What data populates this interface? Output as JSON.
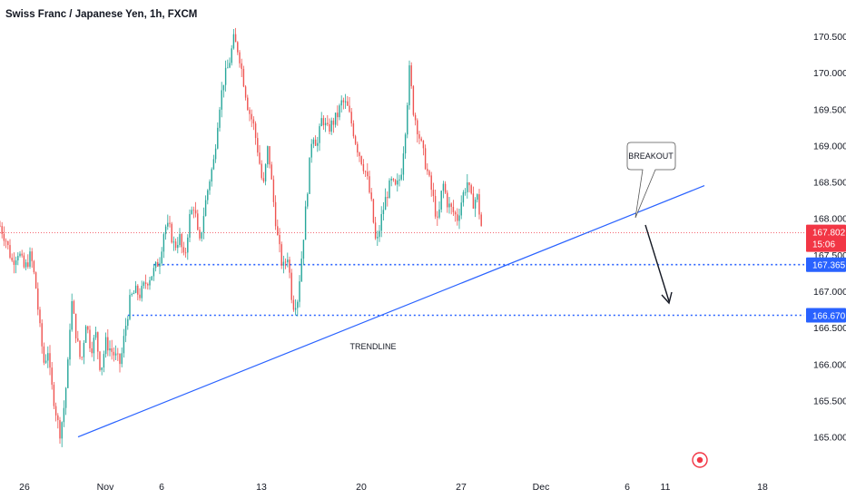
{
  "chart_title": "Swiss Franc / Japanese Yen, 1h, FXCM",
  "chart_data": {
    "type": "candlestick",
    "title": "Swiss Franc / Japanese Yen, 1h, FXCM",
    "ylim": [
      164.87,
      170.65
    ],
    "y_ticks": [
      "170.500",
      "170.000",
      "169.500",
      "169.000",
      "168.500",
      "168.000",
      "167.500",
      "167.000",
      "166.500",
      "166.000",
      "165.500",
      "165.000"
    ],
    "x_ticks": [
      "26",
      "Nov",
      "6",
      "13",
      "20",
      "27",
      "Dec",
      "6",
      "11",
      "18"
    ],
    "colors": {
      "up": "#26a69a",
      "down": "#ef5350",
      "trendline": "#2962ff",
      "level": "#2962ff",
      "price": "#f23645"
    },
    "path_points": [
      {
        "d": -2.0,
        "p": 167.9
      },
      {
        "d": -1.5,
        "p": 167.7
      },
      {
        "d": -1.0,
        "p": 167.4
      },
      {
        "d": -0.5,
        "p": 167.55
      },
      {
        "d": 0.0,
        "p": 167.3
      },
      {
        "d": 0.5,
        "p": 167.5
      },
      {
        "d": 0.9,
        "p": 167.1
      },
      {
        "d": 1.3,
        "p": 166.4
      },
      {
        "d": 1.6,
        "p": 166.0
      },
      {
        "d": 1.9,
        "p": 166.2
      },
      {
        "d": 2.1,
        "p": 165.8
      },
      {
        "d": 2.4,
        "p": 165.5
      },
      {
        "d": 2.7,
        "p": 165.2
      },
      {
        "d": 2.9,
        "p": 165.05
      },
      {
        "d": 3.2,
        "p": 165.4
      },
      {
        "d": 3.5,
        "p": 165.9
      },
      {
        "d": 3.8,
        "p": 166.9
      },
      {
        "d": 4.2,
        "p": 166.4
      },
      {
        "d": 4.6,
        "p": 166.0
      },
      {
        "d": 5.0,
        "p": 166.6
      },
      {
        "d": 5.4,
        "p": 166.2
      },
      {
        "d": 5.8,
        "p": 166.4
      },
      {
        "d": 6.2,
        "p": 165.9
      },
      {
        "d": 6.6,
        "p": 166.3
      },
      {
        "d": 7.0,
        "p": 166.2
      },
      {
        "d": 7.4,
        "p": 166.1
      },
      {
        "d": 7.8,
        "p": 166.0
      },
      {
        "d": 8.2,
        "p": 166.5
      },
      {
        "d": 8.6,
        "p": 166.9
      },
      {
        "d": 9.0,
        "p": 167.0
      },
      {
        "d": 9.4,
        "p": 166.95
      },
      {
        "d": 9.8,
        "p": 167.1
      },
      {
        "d": 10.2,
        "p": 167.2
      },
      {
        "d": 10.6,
        "p": 167.3
      },
      {
        "d": 11.0,
        "p": 167.45
      },
      {
        "d": 11.4,
        "p": 167.9
      },
      {
        "d": 11.8,
        "p": 167.85
      },
      {
        "d": 12.2,
        "p": 167.6
      },
      {
        "d": 12.6,
        "p": 167.75
      },
      {
        "d": 13.0,
        "p": 167.4
      },
      {
        "d": 13.4,
        "p": 168.0
      },
      {
        "d": 13.8,
        "p": 168.2
      },
      {
        "d": 14.2,
        "p": 167.6
      },
      {
        "d": 14.6,
        "p": 168.1
      },
      {
        "d": 15.0,
        "p": 168.5
      },
      {
        "d": 15.4,
        "p": 168.8
      },
      {
        "d": 15.8,
        "p": 169.5
      },
      {
        "d": 16.2,
        "p": 169.9
      },
      {
        "d": 16.6,
        "p": 170.1
      },
      {
        "d": 17.0,
        "p": 170.45
      },
      {
        "d": 17.4,
        "p": 170.3
      },
      {
        "d": 17.8,
        "p": 169.9
      },
      {
        "d": 18.2,
        "p": 169.5
      },
      {
        "d": 18.6,
        "p": 169.3
      },
      {
        "d": 19.0,
        "p": 168.9
      },
      {
        "d": 19.4,
        "p": 168.4
      },
      {
        "d": 19.8,
        "p": 169.0
      },
      {
        "d": 20.2,
        "p": 168.3
      },
      {
        "d": 20.6,
        "p": 167.7
      },
      {
        "d": 21.0,
        "p": 167.3
      },
      {
        "d": 21.4,
        "p": 167.5
      },
      {
        "d": 21.8,
        "p": 166.8
      },
      {
        "d": 22.2,
        "p": 166.9
      },
      {
        "d": 22.6,
        "p": 167.6
      },
      {
        "d": 23.0,
        "p": 168.4
      },
      {
        "d": 23.4,
        "p": 169.2
      },
      {
        "d": 23.8,
        "p": 169.0
      },
      {
        "d": 24.2,
        "p": 169.4
      },
      {
        "d": 24.6,
        "p": 169.2
      },
      {
        "d": 25.0,
        "p": 169.3
      },
      {
        "d": 25.4,
        "p": 169.4
      },
      {
        "d": 25.8,
        "p": 169.6
      },
      {
        "d": 26.2,
        "p": 169.55
      },
      {
        "d": 26.6,
        "p": 169.3
      },
      {
        "d": 27.0,
        "p": 169.0
      },
      {
        "d": 27.4,
        "p": 168.8
      },
      {
        "d": 27.8,
        "p": 168.6
      },
      {
        "d": 28.2,
        "p": 168.2
      },
      {
        "d": 28.6,
        "p": 167.6
      },
      {
        "d": 29.0,
        "p": 168.0
      },
      {
        "d": 29.4,
        "p": 168.3
      },
      {
        "d": 29.8,
        "p": 168.5
      },
      {
        "d": 30.2,
        "p": 168.4
      },
      {
        "d": 30.6,
        "p": 168.6
      },
      {
        "d": 31.0,
        "p": 169.3
      },
      {
        "d": 31.3,
        "p": 170.05
      },
      {
        "d": 31.6,
        "p": 169.5
      },
      {
        "d": 32.0,
        "p": 169.2
      },
      {
        "d": 32.4,
        "p": 168.9
      },
      {
        "d": 32.8,
        "p": 168.6
      },
      {
        "d": 33.2,
        "p": 168.3
      },
      {
        "d": 33.6,
        "p": 167.9
      },
      {
        "d": 34.0,
        "p": 168.5
      },
      {
        "d": 34.4,
        "p": 168.2
      },
      {
        "d": 34.8,
        "p": 168.1
      },
      {
        "d": 35.2,
        "p": 168.0
      },
      {
        "d": 35.6,
        "p": 168.3
      },
      {
        "d": 36.0,
        "p": 168.5
      },
      {
        "d": 36.4,
        "p": 168.2
      },
      {
        "d": 36.8,
        "p": 168.3
      },
      {
        "d": 37.2,
        "p": 167.82
      }
    ],
    "trendline": [
      {
        "d": 2.9,
        "p": 165.0
      },
      {
        "d": 39.0,
        "p": 168.45
      }
    ],
    "levels": [
      {
        "start_d": 10.5,
        "value": 167.365,
        "label": "167.365"
      },
      {
        "start_d": 8.4,
        "value": 166.67,
        "label": "166.670"
      }
    ],
    "current_price": {
      "value": 167.802,
      "label": "167.802",
      "countdown": "15:06",
      "partial_label": "167.5?0"
    },
    "annotations": {
      "trendline_label": "TRENDLINE",
      "breakout_label": "BREAKOUT"
    }
  }
}
